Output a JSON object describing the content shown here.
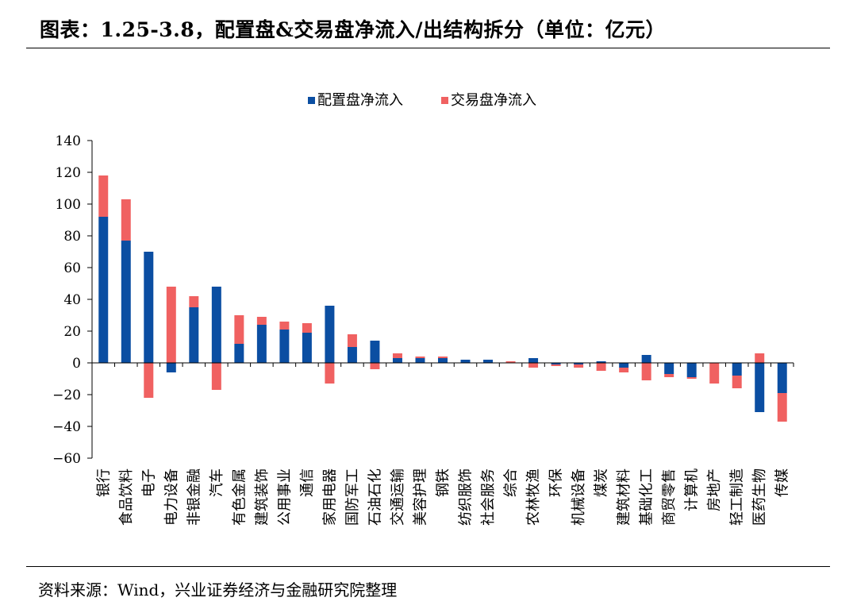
{
  "title": "图表：1.25-3.8，配置盘&交易盘净流入/出结构拆分（单位：亿元）",
  "source": "资料来源：Wind，兴业证券经济与金融研究院整理",
  "chart_data": {
    "type": "bar",
    "stacked": true,
    "categories": [
      "银行",
      "食品饮料",
      "电子",
      "电力设备",
      "非银金融",
      "汽车",
      "有色金属",
      "建筑装饰",
      "公用事业",
      "通信",
      "家用电器",
      "国防军工",
      "石油石化",
      "交通运输",
      "美容护理",
      "钢铁",
      "纺织服饰",
      "社会服务",
      "综合",
      "农林牧渔",
      "环保",
      "机械设备",
      "煤炭",
      "建筑材料",
      "基础化工",
      "商贸零售",
      "计算机",
      "房地产",
      "轻工制造",
      "医药生物",
      "传媒"
    ],
    "series": [
      {
        "name": "配置盘净流入",
        "color": "#0b4ea2",
        "values": [
          92,
          77,
          70,
          -6,
          35,
          48,
          12,
          24,
          21,
          19,
          36,
          10,
          14,
          3,
          3,
          3,
          2,
          2,
          0,
          3,
          -1,
          -1,
          1,
          -3,
          5,
          -7,
          -9,
          0,
          -8,
          -31,
          -19
        ]
      },
      {
        "name": "交易盘净流入",
        "color": "#f06161",
        "values": [
          26,
          26,
          -22,
          48,
          7,
          -17,
          18,
          5,
          5,
          6,
          -13,
          8,
          -4,
          3,
          1,
          1,
          0,
          0,
          1,
          -3,
          -1,
          -2,
          -5,
          -3,
          -11,
          -2,
          -1,
          -13,
          -8,
          6,
          -18
        ]
      }
    ],
    "ylim": [
      -60,
      140
    ],
    "yticks": [
      -60,
      -40,
      -20,
      0,
      20,
      40,
      60,
      80,
      100,
      120,
      140
    ],
    "legend_position": "top-center",
    "grid": false
  }
}
